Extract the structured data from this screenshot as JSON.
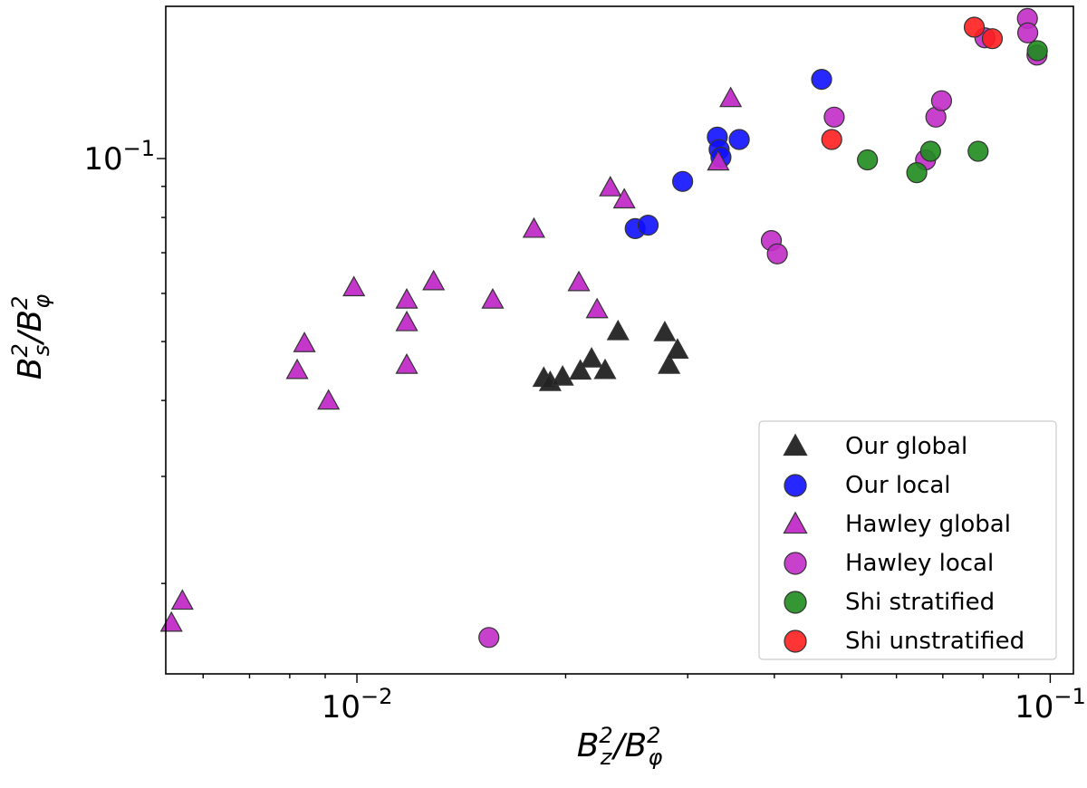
{
  "chart_data": {
    "type": "scatter",
    "xscale": "log",
    "yscale": "log",
    "xlim": [
      0.0053,
      0.108
    ],
    "ylim": [
      0.0142,
      0.178
    ],
    "xlabel": {
      "base": "B",
      "sub": "z",
      "over": "B",
      "oversub": "φ"
    },
    "ylabel": {
      "base": "B",
      "sub": "s",
      "over": "B",
      "oversub": "φ"
    },
    "x_ticks": [
      {
        "value": 0.01,
        "base": "10",
        "exp": "−2"
      },
      {
        "value": 0.1,
        "base": "10",
        "exp": "−1"
      }
    ],
    "y_ticks": [
      {
        "value": 0.1,
        "base": "10",
        "exp": "−1"
      }
    ],
    "legend_position": "lower-right",
    "series": [
      {
        "name": "Our global",
        "marker": "triangle",
        "color": "#222222",
        "points": [
          [
            0.0186,
            0.0435
          ],
          [
            0.019,
            0.0428
          ],
          [
            0.0198,
            0.0437
          ],
          [
            0.021,
            0.0447
          ],
          [
            0.0218,
            0.0468
          ],
          [
            0.0228,
            0.0448
          ],
          [
            0.0238,
            0.0519
          ],
          [
            0.0278,
            0.0517
          ],
          [
            0.0282,
            0.0457
          ],
          [
            0.029,
            0.0484
          ]
        ]
      },
      {
        "name": "Our local",
        "marker": "circle",
        "color": "#1010ff",
        "points": [
          [
            0.0252,
            0.0767
          ],
          [
            0.0263,
            0.0777
          ],
          [
            0.0295,
            0.0917
          ],
          [
            0.0331,
            0.1085
          ],
          [
            0.0333,
            0.1035
          ],
          [
            0.0335,
            0.1005
          ],
          [
            0.0356,
            0.1075
          ],
          [
            0.0468,
            0.135
          ]
        ]
      },
      {
        "name": "Hawley global",
        "marker": "triangle",
        "color": "#c22cc8",
        "points": [
          [
            0.0054,
            0.0172
          ],
          [
            0.0056,
            0.0187
          ],
          [
            0.0082,
            0.0448
          ],
          [
            0.0084,
            0.0496
          ],
          [
            0.0091,
            0.0399
          ],
          [
            0.0099,
            0.0613
          ],
          [
            0.0118,
            0.0585
          ],
          [
            0.0118,
            0.0537
          ],
          [
            0.0118,
            0.0457
          ],
          [
            0.0129,
            0.0627
          ],
          [
            0.0157,
            0.0585
          ],
          [
            0.018,
            0.0765
          ],
          [
            0.0209,
            0.0625
          ],
          [
            0.0222,
            0.0564
          ],
          [
            0.0232,
            0.0895
          ],
          [
            0.0243,
            0.0855
          ],
          [
            0.0332,
            0.0987
          ],
          [
            0.0346,
            0.1255
          ]
        ]
      },
      {
        "name": "Hawley local",
        "marker": "circle",
        "color": "#c22cc8",
        "points": [
          [
            0.0155,
            0.0163
          ],
          [
            0.0396,
            0.0733
          ],
          [
            0.0404,
            0.0697
          ],
          [
            0.0488,
            0.117
          ],
          [
            0.0661,
            0.0995
          ],
          [
            0.0684,
            0.117
          ],
          [
            0.0697,
            0.1245
          ],
          [
            0.0805,
            0.158
          ],
          [
            0.0927,
            0.17
          ],
          [
            0.0928,
            0.161
          ],
          [
            0.0957,
            0.148
          ]
        ]
      },
      {
        "name": "Shi stratified",
        "marker": "circle",
        "color": "#1e8c1e",
        "points": [
          [
            0.0545,
            0.0995
          ],
          [
            0.0642,
            0.0948
          ],
          [
            0.0672,
            0.1028
          ],
          [
            0.0787,
            0.1028
          ],
          [
            0.0958,
            0.1505
          ]
        ]
      },
      {
        "name": "Shi unstratified",
        "marker": "circle",
        "color": "#ff1e1e",
        "points": [
          [
            0.0484,
            0.1075
          ],
          [
            0.0777,
            0.1645
          ],
          [
            0.0825,
            0.1575
          ]
        ]
      }
    ]
  }
}
